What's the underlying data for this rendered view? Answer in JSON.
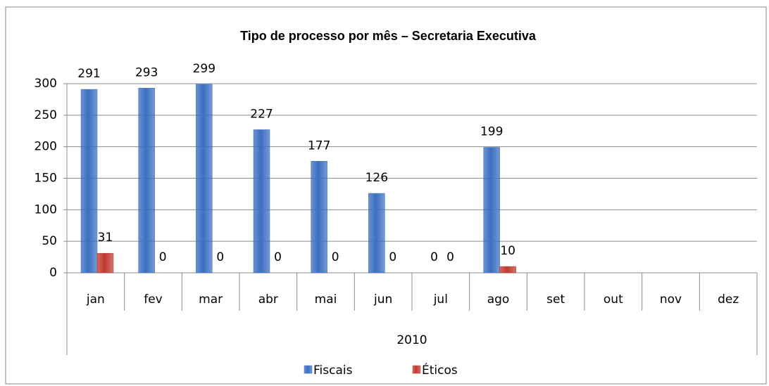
{
  "chart_data": {
    "type": "bar",
    "title": "Tipo de processo  por mês – Secretaria  Executiva",
    "categories": [
      "jan",
      "fev",
      "mar",
      "abr",
      "mai",
      "jun",
      "jul",
      "ago",
      "set",
      "out",
      "nov",
      "dez"
    ],
    "category_group": "2010",
    "series": [
      {
        "name": "Fiscais",
        "color": "#3a6fc0",
        "values": [
          291,
          293,
          299,
          227,
          177,
          126,
          0,
          199,
          null,
          null,
          null,
          null
        ]
      },
      {
        "name": "Éticos",
        "color": "#c0392f",
        "values": [
          31,
          0,
          0,
          0,
          0,
          0,
          0,
          10,
          null,
          null,
          null,
          null
        ]
      }
    ],
    "ylim": [
      0,
      300
    ],
    "yticks": [
      0,
      50,
      100,
      150,
      200,
      250,
      300
    ],
    "grid": true,
    "legend": "bottom"
  }
}
